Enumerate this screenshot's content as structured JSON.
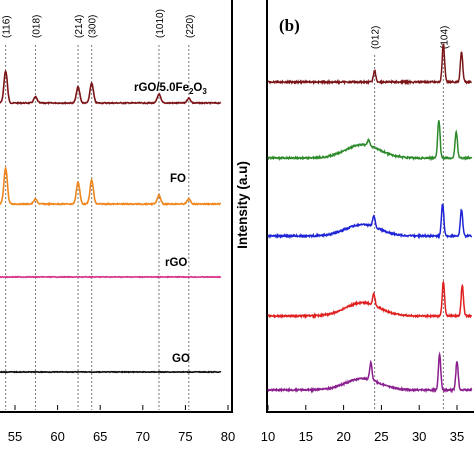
{
  "chart_data": [
    {
      "panel": "a",
      "type": "line",
      "xlim": [
        50,
        80
      ],
      "x_ticks": [
        "55",
        "60",
        "65",
        "70",
        "75",
        "80"
      ],
      "reference_lines": [
        {
          "x": 53.9,
          "label": "(116)"
        },
        {
          "x": 57.4,
          "label": "(018)"
        },
        {
          "x": 62.4,
          "label": "(214)"
        },
        {
          "x": 64.0,
          "label": "(300)"
        },
        {
          "x": 71.9,
          "label": "(1010)"
        },
        {
          "x": 75.4,
          "label": "(220)"
        }
      ],
      "series": [
        {
          "name": "rGO/5.0Fe2O3",
          "color": "#7b1416",
          "peaks": [
            53.9,
            57.4,
            62.4,
            64.0,
            71.9,
            75.4
          ],
          "heights": [
            0.8,
            0.15,
            0.4,
            0.5,
            0.22,
            0.12
          ]
        },
        {
          "name": "FO",
          "color": "#f0861c",
          "peaks": [
            53.9,
            57.4,
            62.4,
            64.0,
            71.9,
            75.4
          ],
          "heights": [
            0.9,
            0.12,
            0.55,
            0.6,
            0.22,
            0.12
          ]
        },
        {
          "name": "rGO",
          "color": "#d6358c",
          "peaks": [],
          "heights": []
        },
        {
          "name": "GO",
          "color": "#111111",
          "peaks": [],
          "heights": []
        }
      ]
    },
    {
      "panel": "b",
      "type": "line",
      "ylabel": "Intensity (a.u)",
      "xlim": [
        10,
        37
      ],
      "x_ticks": [
        "10",
        "15",
        "20",
        "25",
        "30",
        "35"
      ],
      "reference_lines": [
        {
          "x": 24.1,
          "label": "(012)"
        },
        {
          "x": 33.2,
          "label": "(104)"
        }
      ],
      "series": [
        {
          "color": "#7b1416",
          "peaks": [
            24.1,
            33.2,
            35.6
          ],
          "heights": [
            0.3,
            1.0,
            0.8
          ],
          "hump": 0.0
        },
        {
          "color": "#2d8a2a",
          "peaks": [
            23.3,
            32.6,
            34.9
          ],
          "heights": [
            0.15,
            1.0,
            0.7
          ],
          "hump": 0.35
        },
        {
          "color": "#1f25d6",
          "peaks": [
            24.0,
            33.1,
            35.6
          ],
          "heights": [
            0.3,
            0.85,
            0.7
          ],
          "hump": 0.3
        },
        {
          "color": "#e01f1f",
          "peaks": [
            24.0,
            33.2,
            35.7
          ],
          "heights": [
            0.3,
            0.9,
            0.8
          ],
          "hump": 0.35
        },
        {
          "color": "#8a1e8e",
          "peaks": [
            23.6,
            32.7,
            35.0
          ],
          "heights": [
            0.45,
            0.95,
            0.75
          ],
          "hump": 0.3
        }
      ]
    }
  ],
  "labels": {
    "panel_b": "(b)",
    "series_a": [
      "rGO/5.0Fe",
      "2",
      "O",
      "3",
      "FO",
      "rGO",
      "GO"
    ]
  }
}
